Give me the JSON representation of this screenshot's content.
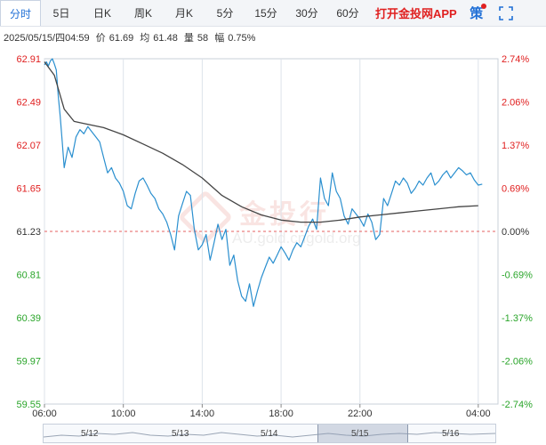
{
  "tabs": [
    {
      "label": "分时",
      "active": true
    },
    {
      "label": "5日"
    },
    {
      "label": "日K"
    },
    {
      "label": "周K"
    },
    {
      "label": "月K"
    },
    {
      "label": "5分"
    },
    {
      "label": "15分"
    },
    {
      "label": "30分"
    },
    {
      "label": "60分"
    }
  ],
  "promo": {
    "text": "打开金投网APP",
    "icon_text": "策",
    "icon_name": "strategy-icon",
    "fullscreen_icon": "fullscreen-icon"
  },
  "info": {
    "datetime": "2025/05/15/四04:59",
    "price_label": "价",
    "price": "61.69",
    "avg_label": "均",
    "avg": "61.48",
    "volume_label": "量",
    "volume": "58",
    "change_label": "幅",
    "change": "0.75%"
  },
  "watermark": {
    "text": "金投行",
    "url": "AU.gold.cngold.org"
  },
  "colors": {
    "price_line": "#2a8fcf",
    "avg_line": "#444444",
    "up": "#e02020",
    "down": "#2aa52a",
    "reference": "#e56060"
  },
  "chart_data": {
    "type": "line",
    "prev_close": 61.23,
    "y_ticks": [
      "62.91",
      "62.49",
      "62.07",
      "61.65",
      "61.23",
      "60.81",
      "60.39",
      "59.97",
      "59.55"
    ],
    "y_tick_values": [
      62.91,
      62.49,
      62.07,
      61.65,
      61.23,
      60.81,
      60.39,
      59.97,
      59.55
    ],
    "pct_ticks": [
      "2.74%",
      "2.06%",
      "1.37%",
      "0.69%",
      "0.00%",
      "-0.69%",
      "-1.37%",
      "-2.06%",
      "-2.74%"
    ],
    "x_ticks": [
      "06:00",
      "10:00",
      "14:00",
      "18:00",
      "22:00",
      "04:00"
    ],
    "x_tick_hours": [
      0,
      4,
      8,
      12,
      16,
      22
    ],
    "x_range": [
      0,
      23
    ],
    "ylim": [
      59.55,
      62.91
    ],
    "series": [
      {
        "key": "price",
        "x": [
          0,
          0.1,
          0.2,
          0.3,
          0.4,
          0.5,
          0.6,
          0.7,
          0.8,
          0.9,
          1.0,
          1.2,
          1.4,
          1.6,
          1.8,
          2.0,
          2.2,
          2.4,
          2.6,
          2.8,
          3.0,
          3.2,
          3.4,
          3.6,
          3.8,
          4.0,
          4.2,
          4.4,
          4.6,
          4.8,
          5.0,
          5.2,
          5.4,
          5.6,
          5.8,
          6.0,
          6.2,
          6.4,
          6.6,
          6.8,
          7.0,
          7.2,
          7.4,
          7.6,
          7.8,
          8.0,
          8.2,
          8.4,
          8.6,
          8.8,
          9.0,
          9.2,
          9.4,
          9.6,
          9.8,
          10.0,
          10.2,
          10.4,
          10.6,
          10.8,
          11.0,
          11.2,
          11.4,
          11.6,
          11.8,
          12.0,
          12.2,
          12.4,
          12.6,
          12.8,
          13.0,
          13.2,
          13.4,
          13.6,
          13.8,
          14.0,
          14.2,
          14.4,
          14.6,
          14.8,
          15.0,
          15.2,
          15.4,
          15.6,
          15.8,
          16.0,
          16.2,
          16.4,
          16.6,
          16.8,
          17.0,
          17.2,
          17.4,
          17.6,
          17.8,
          18.0,
          18.2,
          18.4,
          18.6,
          18.8,
          19.0,
          19.2,
          19.4,
          19.6,
          19.8,
          20.0,
          20.2,
          20.4,
          20.6,
          20.8,
          21.0,
          21.2,
          21.4,
          21.6,
          21.8,
          22.0,
          22.2
        ],
        "values": [
          62.85,
          62.88,
          62.84,
          62.89,
          62.91,
          62.86,
          62.8,
          62.55,
          62.35,
          62.1,
          61.85,
          62.05,
          61.95,
          62.15,
          62.22,
          62.18,
          62.25,
          62.2,
          62.15,
          62.1,
          61.95,
          61.8,
          61.85,
          61.75,
          61.7,
          61.62,
          61.48,
          61.45,
          61.6,
          61.72,
          61.75,
          61.68,
          61.6,
          61.55,
          61.45,
          61.4,
          61.32,
          61.2,
          61.05,
          61.38,
          61.5,
          61.62,
          61.58,
          61.25,
          61.05,
          61.1,
          61.2,
          60.95,
          61.12,
          61.3,
          61.15,
          61.25,
          60.9,
          61.0,
          60.75,
          60.6,
          60.55,
          60.72,
          60.5,
          60.65,
          60.78,
          60.88,
          60.98,
          60.92,
          61.0,
          61.08,
          61.02,
          60.95,
          61.05,
          61.12,
          61.08,
          61.18,
          61.28,
          61.35,
          61.25,
          61.75,
          61.55,
          61.48,
          61.8,
          61.62,
          61.55,
          61.38,
          61.3,
          61.45,
          61.4,
          61.35,
          61.28,
          61.4,
          61.32,
          61.15,
          61.2,
          61.55,
          61.48,
          61.6,
          61.72,
          61.68,
          61.75,
          61.7,
          61.6,
          61.65,
          61.72,
          61.68,
          61.75,
          61.8,
          61.68,
          61.72,
          61.78,
          61.82,
          61.75,
          61.8,
          61.85,
          61.82,
          61.78,
          61.8,
          61.73,
          61.68,
          61.69
        ]
      },
      {
        "key": "average",
        "x": [
          0,
          0.5,
          1.0,
          1.5,
          2.0,
          3.0,
          4.0,
          5.0,
          6.0,
          7.0,
          8.0,
          9.0,
          10.0,
          11.0,
          12.0,
          13.0,
          14.0,
          15.0,
          16.0,
          17.0,
          18.0,
          19.0,
          20.0,
          21.0,
          22.0
        ],
        "values": [
          62.88,
          62.75,
          62.42,
          62.3,
          62.28,
          62.24,
          62.17,
          62.08,
          61.99,
          61.88,
          61.75,
          61.58,
          61.47,
          61.39,
          61.34,
          61.32,
          61.32,
          61.34,
          61.37,
          61.39,
          61.41,
          61.43,
          61.45,
          61.47,
          61.48
        ]
      }
    ]
  },
  "navigator": {
    "labels": [
      "5/12",
      "5/13",
      "5/14",
      "5/15",
      "5/16"
    ]
  }
}
